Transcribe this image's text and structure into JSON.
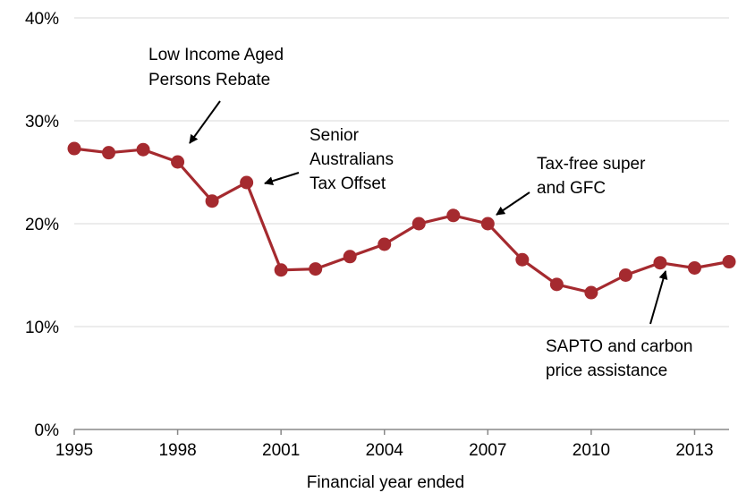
{
  "chart_data": {
    "type": "line",
    "title": "",
    "xlabel": "Financial year ended",
    "ylabel": "",
    "x": [
      1995,
      1996,
      1997,
      1998,
      1999,
      2000,
      2001,
      2002,
      2003,
      2004,
      2005,
      2006,
      2007,
      2008,
      2009,
      2010,
      2011,
      2012,
      2013,
      2014
    ],
    "series": [
      {
        "values": [
          27.3,
          26.9,
          27.2,
          26.0,
          22.2,
          24.0,
          15.5,
          15.6,
          16.8,
          18.0,
          20.0,
          20.8,
          20.0,
          16.5,
          14.1,
          13.3,
          15.0,
          16.2,
          15.7,
          16.3
        ]
      }
    ],
    "xlim": [
      1995,
      2014
    ],
    "ylim": [
      0,
      40
    ],
    "x_ticks": [
      "1995",
      "1998",
      "2001",
      "2004",
      "2007",
      "2010",
      "2013"
    ],
    "y_ticks": [
      "0%",
      "10%",
      "20%",
      "30%",
      "40%"
    ],
    "grid": "horizontal",
    "line_color": "#a52a2f",
    "annotations": [
      {
        "lines": [
          "Low Income Aged",
          "Persons Rebate"
        ]
      },
      {
        "lines": [
          "Senior",
          "Australians",
          "Tax Offset"
        ]
      },
      {
        "lines": [
          "Tax-free super",
          "and GFC"
        ]
      },
      {
        "lines": [
          "SAPTO and carbon",
          "price assistance"
        ]
      }
    ]
  }
}
